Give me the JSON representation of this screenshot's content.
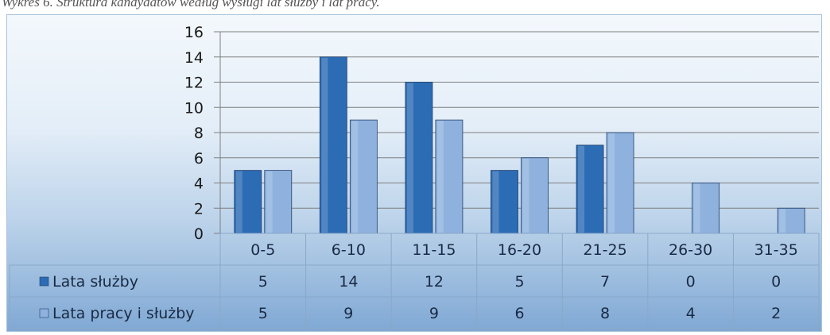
{
  "caption": "Wykres 6. Struktura kandydatów według wysługi lat służby i lat pracy.",
  "colors": {
    "series1": "#2c6cb5",
    "series2": "#8eb1de",
    "grid": "#7f7f7f",
    "table_border": "#8aa8c8"
  },
  "chart_data": {
    "type": "bar",
    "categories": [
      "0-5",
      "6-10",
      "11-15",
      "16-20",
      "21-25",
      "26-30",
      "31-35"
    ],
    "series": [
      {
        "name": "Lata służby",
        "values": [
          5,
          14,
          12,
          5,
          7,
          0,
          0
        ]
      },
      {
        "name": "Lata pracy i służby",
        "values": [
          5,
          9,
          9,
          6,
          8,
          4,
          2
        ]
      }
    ],
    "ylim": [
      0,
      16
    ],
    "yticks": [
      "0",
      "2",
      "4",
      "6",
      "8",
      "10",
      "12",
      "14",
      "16"
    ],
    "grid": true,
    "legend": "data-table",
    "data_table": true
  }
}
